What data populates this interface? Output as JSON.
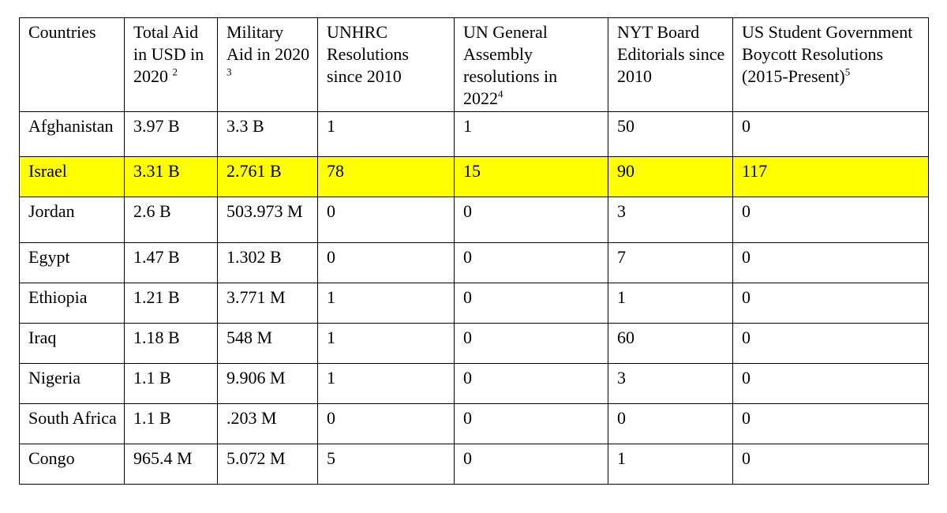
{
  "headers": [
    {
      "text": "Countries",
      "sup": ""
    },
    {
      "text": "Total Aid in USD in 2020",
      "sup": "2"
    },
    {
      "text": "Military Aid in 2020",
      "sup": "3"
    },
    {
      "text": "UNHRC Resolutions since 2010",
      "sup": ""
    },
    {
      "text": "UN General Assembly resolutions in 2022",
      "sup": "4"
    },
    {
      "text": "NYT Board Editorials since 2010",
      "sup": ""
    },
    {
      "text": "US Student Government Boycott Resolutions (2015-Present)",
      "sup": "5"
    }
  ],
  "rows": [
    {
      "country": "Afghanistan",
      "total_aid": "3.97 B",
      "military_aid": "3.3 B",
      "unhrc": "1",
      "unga": "1",
      "nyt": "50",
      "boycott": "0"
    },
    {
      "country": "Israel",
      "total_aid": "3.31 B",
      "military_aid": "2.761 B",
      "unhrc": "78",
      "unga": "15",
      "nyt": "90",
      "boycott": "117"
    },
    {
      "country": "Jordan",
      "total_aid": "2.6 B",
      "military_aid": "503.973 M",
      "unhrc": "0",
      "unga": "0",
      "nyt": "3",
      "boycott": "0"
    },
    {
      "country": "Egypt",
      "total_aid": "1.47 B",
      "military_aid": "1.302 B",
      "unhrc": "0",
      "unga": "0",
      "nyt": "7",
      "boycott": "0"
    },
    {
      "country": "Ethiopia",
      "total_aid": "1.21 B",
      "military_aid": "3.771 M",
      "unhrc": "1",
      "unga": "0",
      "nyt": "1",
      "boycott": "0"
    },
    {
      "country": "Iraq",
      "total_aid": "1.18 B",
      "military_aid": "548 M",
      "unhrc": "1",
      "unga": "0",
      "nyt": "60",
      "boycott": "0"
    },
    {
      "country": "Nigeria",
      "total_aid": "1.1 B",
      "military_aid": "9.906 M",
      "unhrc": "1",
      "unga": "0",
      "nyt": "3",
      "boycott": "0"
    },
    {
      "country": "South Africa",
      "total_aid": "1.1 B",
      "military_aid": ".203 M",
      "unhrc": "0",
      "unga": "0",
      "nyt": "0",
      "boycott": "0"
    },
    {
      "country": "Congo",
      "total_aid": "965.4 M",
      "military_aid": "5.072 M",
      "unhrc": "5",
      "unga": "0",
      "nyt": "1",
      "boycott": "0"
    }
  ],
  "highlight_color": "#ffff00"
}
